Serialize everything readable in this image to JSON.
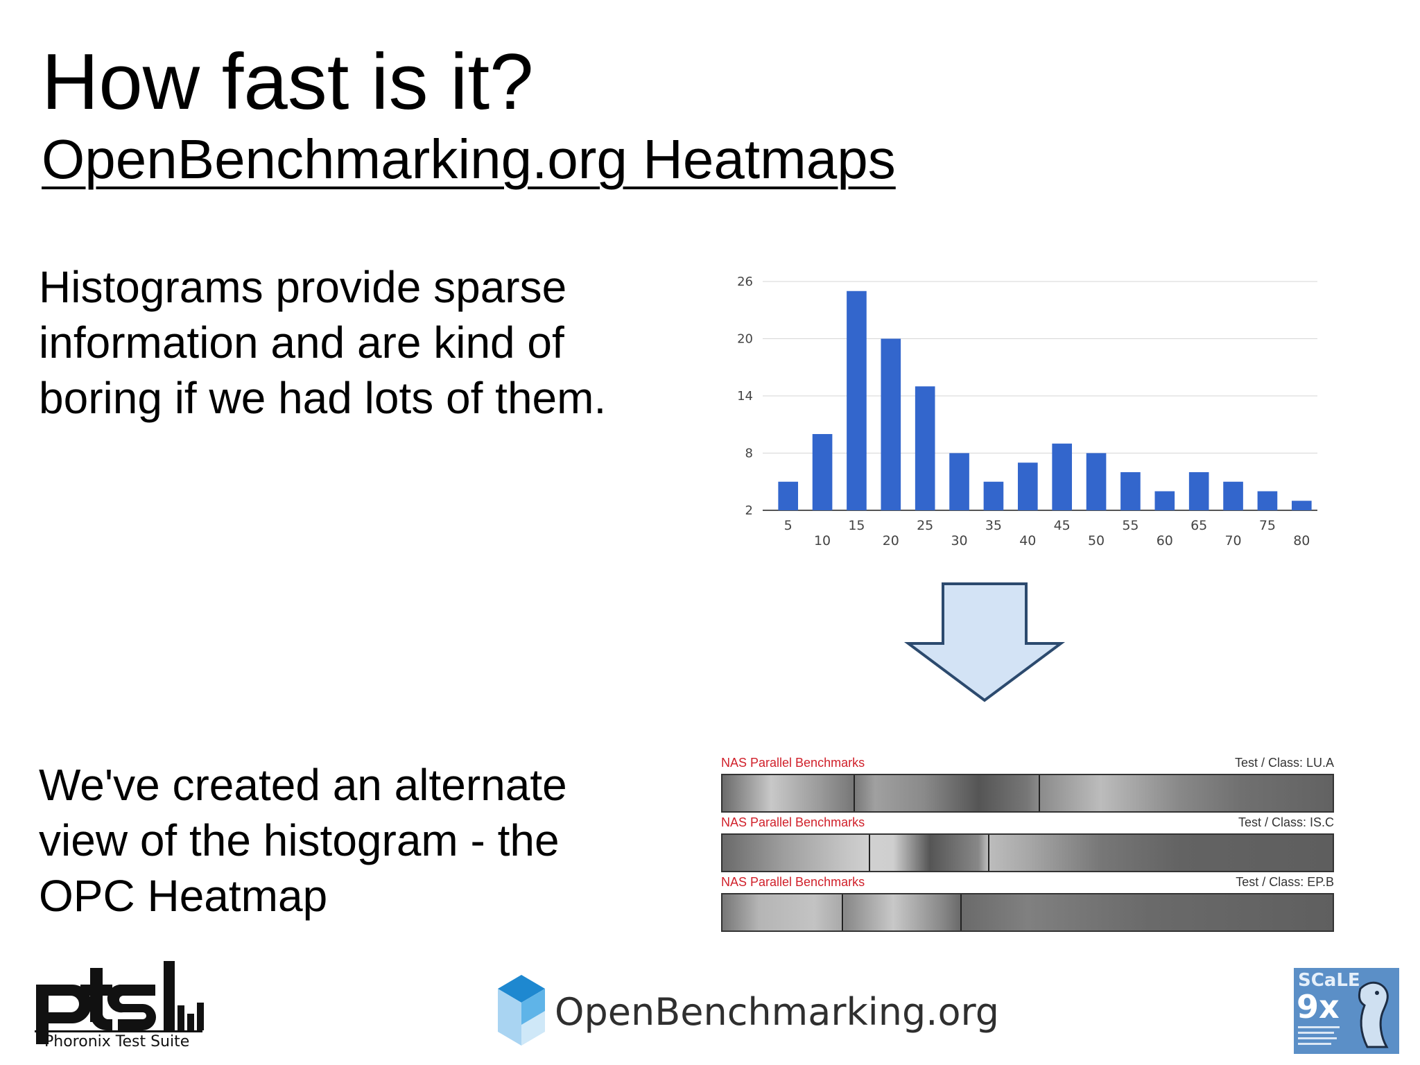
{
  "slide": {
    "title": "How fast is it?",
    "subtitle": "OpenBenchmarking.org Heatmaps",
    "paragraph_1": "Histograms provide sparse\ninformation and are kind of\nboring if we had lots of them.",
    "paragraph_2": "We've created an alternate\nview of the histogram - the\nOPC Heatmap"
  },
  "chart_data": {
    "type": "bar",
    "categories": [
      "5",
      "10",
      "15",
      "20",
      "25",
      "30",
      "35",
      "40",
      "45",
      "50",
      "55",
      "60",
      "65",
      "70",
      "75",
      "80"
    ],
    "values": [
      5,
      10,
      25,
      20,
      15,
      8,
      5,
      7,
      9,
      8,
      6,
      4,
      6,
      5,
      4,
      3
    ],
    "ylim": [
      2,
      26
    ],
    "yticks": [
      2,
      8,
      14,
      20,
      26
    ],
    "grid": true,
    "legend": "none",
    "bar_color": "#3366cc"
  },
  "heatmaps": [
    {
      "title": "NAS Parallel Benchmarks",
      "test_class": "Test / Class: LU.A",
      "dividers": [
        0.215,
        0.518
      ],
      "stops": [
        [
          0,
          "#6b6b6b"
        ],
        [
          0.08,
          "#c8c8c8"
        ],
        [
          0.16,
          "#9a9a9a"
        ],
        [
          0.215,
          "#777"
        ],
        [
          0.25,
          "#a0a0a0"
        ],
        [
          0.33,
          "#8a8a8a"
        ],
        [
          0.42,
          "#555"
        ],
        [
          0.5,
          "#777"
        ],
        [
          0.518,
          "#8a8a8a"
        ],
        [
          0.62,
          "#bcbcbc"
        ],
        [
          0.75,
          "#888"
        ],
        [
          0.85,
          "#707070"
        ],
        [
          1,
          "#626262"
        ]
      ]
    },
    {
      "title": "NAS Parallel Benchmarks",
      "test_class": "Test / Class: IS.C",
      "dividers": [
        0.24,
        0.435
      ],
      "stops": [
        [
          0,
          "#6a6a6a"
        ],
        [
          0.1,
          "#9e9e9e"
        ],
        [
          0.2,
          "#c4c4c4"
        ],
        [
          0.24,
          "#d0d0d0"
        ],
        [
          0.28,
          "#cfcfcf"
        ],
        [
          0.34,
          "#555"
        ],
        [
          0.42,
          "#888"
        ],
        [
          0.435,
          "#bdbdbd"
        ],
        [
          0.5,
          "#a8a8a8"
        ],
        [
          0.62,
          "#777"
        ],
        [
          0.75,
          "#636363"
        ],
        [
          1,
          "#5e5e5e"
        ]
      ]
    },
    {
      "title": "NAS Parallel Benchmarks",
      "test_class": "Test / Class: EP.B",
      "dividers": [
        0.195,
        0.39
      ],
      "stops": [
        [
          0,
          "#777"
        ],
        [
          0.06,
          "#b5b5b5"
        ],
        [
          0.15,
          "#c3c3c3"
        ],
        [
          0.195,
          "#aaa"
        ],
        [
          0.2,
          "#888"
        ],
        [
          0.28,
          "#c8c8c8"
        ],
        [
          0.36,
          "#888"
        ],
        [
          0.39,
          "#6a6a6a"
        ],
        [
          0.5,
          "#808080"
        ],
        [
          0.7,
          "#6a6a6a"
        ],
        [
          1,
          "#5f5f5f"
        ]
      ]
    }
  ],
  "logos": {
    "pts_caption": "Phoronix Test Suite",
    "openbenchmarking": "OpenBenchmarking.org",
    "scale": "SCaLE 9x"
  },
  "colors": {
    "heatmap_title": "#d0202a",
    "arrow_fill": "#d3e3f5",
    "arrow_stroke": "#2c4a6e"
  }
}
